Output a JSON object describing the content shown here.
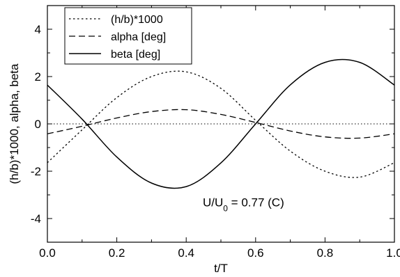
{
  "chart_data": {
    "type": "line",
    "xlabel": "t/T",
    "ylabel": "(h/b)*1000, alpha, beta",
    "xlim": [
      0.0,
      1.0
    ],
    "ylim": [
      -5,
      5
    ],
    "x_ticks": [
      0.0,
      0.2,
      0.4,
      0.6,
      0.8,
      1.0
    ],
    "x_tick_labels": [
      "0.0",
      "0.2",
      "0.4",
      "0.6",
      "0.8",
      "1.0"
    ],
    "y_ticks": [
      -4,
      -2,
      0,
      2,
      4
    ],
    "y_tick_labels": [
      "-4",
      "-2",
      "0",
      "2",
      "4"
    ],
    "grid": false,
    "legend_position": "top-left",
    "zero_line": true,
    "annotation": {
      "main": "U/U",
      "sub": "0",
      "rest": " = 0.77 (C)"
    },
    "series": [
      {
        "name": "(h/b)*1000",
        "style": "dotted",
        "color": "#000000",
        "x": [
          0.0,
          0.1,
          0.2,
          0.3,
          0.4,
          0.5,
          0.6,
          0.7,
          0.8,
          0.9,
          1.0
        ],
        "y": [
          -1.64,
          -0.25,
          1.11,
          2.0,
          2.2,
          1.5,
          0.15,
          -1.15,
          -2.0,
          -2.25,
          -1.64
        ]
      },
      {
        "name": "alpha [deg]",
        "style": "dashed",
        "color": "#000000",
        "x": [
          0.0,
          0.1,
          0.2,
          0.3,
          0.4,
          0.5,
          0.6,
          0.7,
          0.8,
          0.9,
          1.0
        ],
        "y": [
          -0.42,
          -0.1,
          0.25,
          0.52,
          0.6,
          0.4,
          0.06,
          -0.3,
          -0.55,
          -0.6,
          -0.42
        ]
      },
      {
        "name": "beta [deg]",
        "style": "solid",
        "color": "#000000",
        "x": [
          0.0,
          0.1,
          0.2,
          0.3,
          0.4,
          0.5,
          0.6,
          0.7,
          0.8,
          0.9,
          1.0
        ],
        "y": [
          1.64,
          0.2,
          -1.4,
          -2.5,
          -2.65,
          -1.65,
          0.0,
          1.65,
          2.6,
          2.6,
          1.64
        ]
      }
    ]
  }
}
